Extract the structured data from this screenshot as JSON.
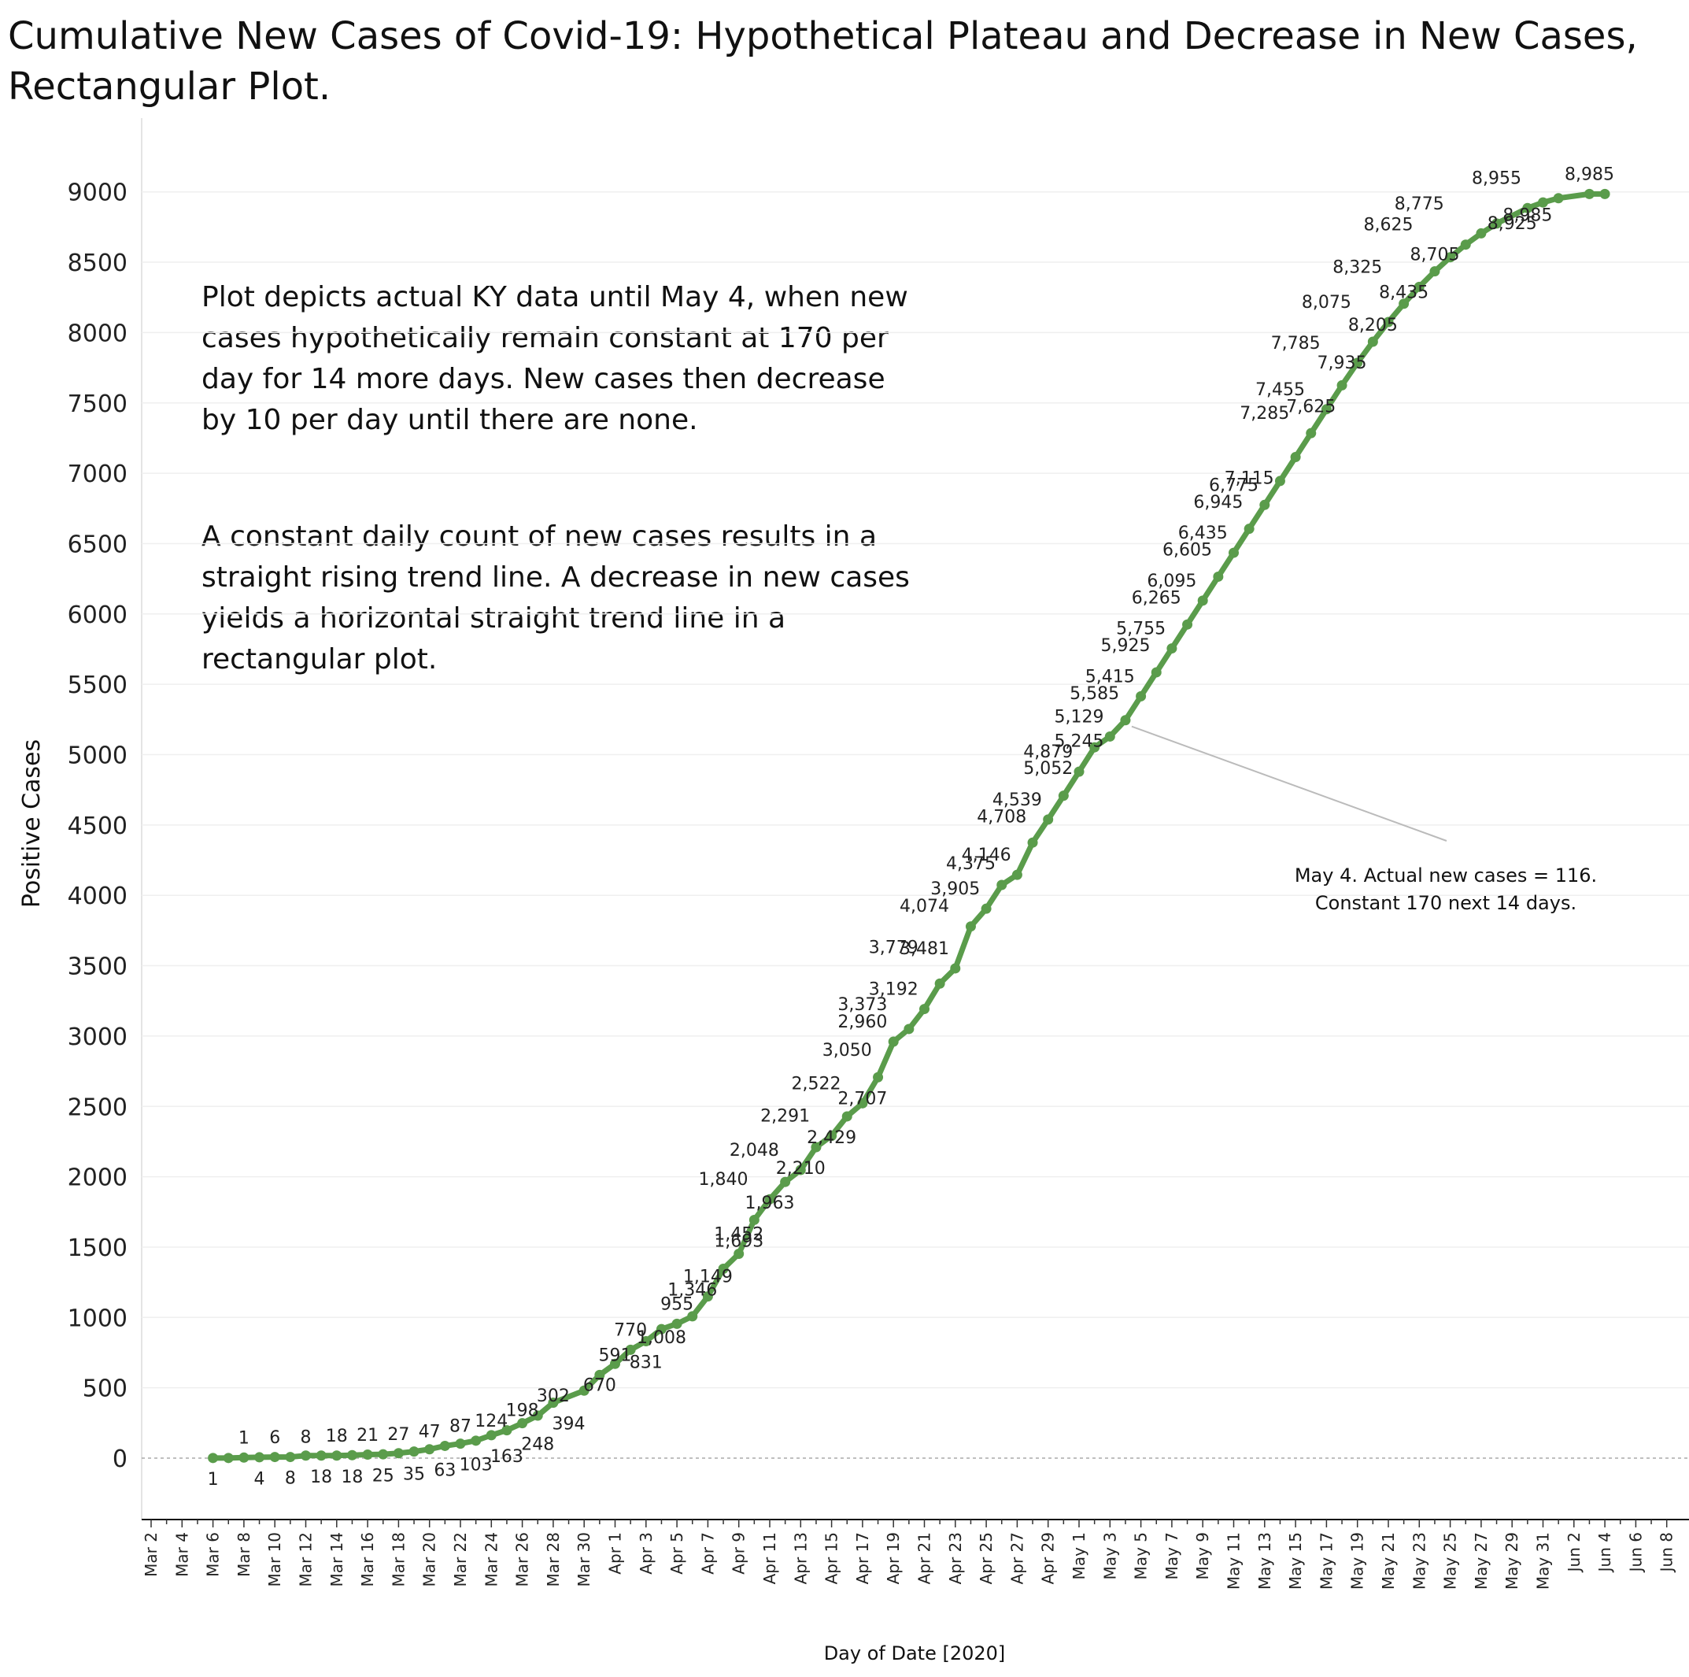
{
  "title_line1": "Cumulative New Cases of Covid-19: Hypothetical Plateau and Decrease in New Cases,",
  "title_line2": "Rectangular Plot.",
  "note_para1": "Plot depicts actual KY data until May 4, when new cases hypothetically remain constant at 170 per day for 14 more days.  New cases then decrease by 10 per day until there are none.",
  "note_para2": "A constant daily count of new cases results in a straight rising trend line. A decrease in new cases yields a horizontal  straight trend line in a rectangular plot.",
  "annotation_line1": "May 4. Actual new cases = 116.",
  "annotation_line2": "Constant 170 next 14 days.",
  "chart_data": {
    "type": "line",
    "xlabel": "Day of Date [2020]",
    "ylabel": "Positive Cases",
    "ylim": [
      -500,
      9500
    ],
    "yticks": [
      0,
      500,
      1000,
      1500,
      2000,
      2500,
      3000,
      3500,
      4000,
      4500,
      5000,
      5500,
      6000,
      6500,
      7000,
      7500,
      8000,
      8500,
      9000
    ],
    "x_start": "Mar 2",
    "x_end": "Jun 8",
    "xtick_labels": [
      "Mar 2",
      "Mar 4",
      "Mar 6",
      "Mar 8",
      "Mar 10",
      "Mar 12",
      "Mar 14",
      "Mar 16",
      "Mar 18",
      "Mar 20",
      "Mar 22",
      "Mar 24",
      "Mar 26",
      "Mar 28",
      "Mar 30",
      "Apr 1",
      "Apr 3",
      "Apr 5",
      "Apr 7",
      "Apr 9",
      "Apr 11",
      "Apr 13",
      "Apr 15",
      "Apr 17",
      "Apr 19",
      "Apr 21",
      "Apr 23",
      "Apr 25",
      "Apr 27",
      "Apr 29",
      "May 1",
      "May 3",
      "May 5",
      "May 7",
      "May 9",
      "May 11",
      "May 13",
      "May 15",
      "May 17",
      "May 19",
      "May 21",
      "May 23",
      "May 25",
      "May 27",
      "May 29",
      "May 31",
      "Jun 2",
      "Jun 4",
      "Jun 6",
      "Jun 8"
    ],
    "grid": "horizontal",
    "line_color": "#5a9c4b",
    "series": [
      {
        "points": [
          [
            "Mar 6",
            1
          ],
          [
            "Mar 7",
            1
          ],
          [
            "Mar 8",
            4
          ],
          [
            "Mar 9",
            6
          ],
          [
            "Mar 10",
            8
          ],
          [
            "Mar 11",
            8
          ],
          [
            "Mar 12",
            18
          ],
          [
            "Mar 13",
            18
          ],
          [
            "Mar 14",
            18
          ],
          [
            "Mar 15",
            21
          ],
          [
            "Mar 16",
            25
          ],
          [
            "Mar 17",
            27
          ],
          [
            "Mar 18",
            35
          ],
          [
            "Mar 19",
            47
          ],
          [
            "Mar 20",
            63
          ],
          [
            "Mar 21",
            87
          ],
          [
            "Mar 22",
            103
          ],
          [
            "Mar 23",
            124
          ],
          [
            "Mar 24",
            163
          ],
          [
            "Mar 25",
            198
          ],
          [
            "Mar 26",
            248
          ],
          [
            "Mar 27",
            302
          ],
          [
            "Mar 28",
            394
          ],
          [
            "Mar 30",
            480
          ],
          [
            "Mar 31",
            591
          ],
          [
            "Apr 1",
            670
          ],
          [
            "Apr 2",
            770
          ],
          [
            "Apr 3",
            831
          ],
          [
            "Apr 4",
            917
          ],
          [
            "Apr 5",
            955
          ],
          [
            "Apr 6",
            1008
          ],
          [
            "Apr 7",
            1149
          ],
          [
            "Apr 8",
            1346
          ],
          [
            "Apr 9",
            1452
          ],
          [
            "Apr 10",
            1693
          ],
          [
            "Apr 11",
            1840
          ],
          [
            "Apr 12",
            1963
          ],
          [
            "Apr 13",
            2048
          ],
          [
            "Apr 14",
            2210
          ],
          [
            "Apr 15",
            2291
          ],
          [
            "Apr 16",
            2429
          ],
          [
            "Apr 17",
            2522
          ],
          [
            "Apr 18",
            2707
          ],
          [
            "Apr 19",
            2960
          ],
          [
            "Apr 20",
            3050
          ],
          [
            "Apr 21",
            3192
          ],
          [
            "Apr 22",
            3373
          ],
          [
            "Apr 23",
            3481
          ],
          [
            "Apr 24",
            3779
          ],
          [
            "Apr 25",
            3905
          ],
          [
            "Apr 26",
            4074
          ],
          [
            "Apr 27",
            4146
          ],
          [
            "Apr 28",
            4375
          ],
          [
            "Apr 29",
            4539
          ],
          [
            "Apr 30",
            4708
          ],
          [
            "May 1",
            4879
          ],
          [
            "May 2",
            5052
          ],
          [
            "May 3",
            5129
          ],
          [
            "May 4",
            5245
          ],
          [
            "May 5",
            5415
          ],
          [
            "May 6",
            5585
          ],
          [
            "May 7",
            5755
          ],
          [
            "May 8",
            5925
          ],
          [
            "May 9",
            6095
          ],
          [
            "May 10",
            6265
          ],
          [
            "May 11",
            6435
          ],
          [
            "May 12",
            6605
          ],
          [
            "May 13",
            6775
          ],
          [
            "May 14",
            6945
          ],
          [
            "May 15",
            7115
          ],
          [
            "May 16",
            7285
          ],
          [
            "May 17",
            7455
          ],
          [
            "May 18",
            7625
          ],
          [
            "May 19",
            7785
          ],
          [
            "May 20",
            7935
          ],
          [
            "May 21",
            8075
          ],
          [
            "May 22",
            8205
          ],
          [
            "May 23",
            8325
          ],
          [
            "May 24",
            8435
          ],
          [
            "May 25",
            8535
          ],
          [
            "May 26",
            8625
          ],
          [
            "May 27",
            8705
          ],
          [
            "May 28",
            8775
          ],
          [
            "May 30",
            8885
          ],
          [
            "May 31",
            8925
          ],
          [
            "Jun 1",
            8955
          ],
          [
            "Jun 3",
            8985
          ],
          [
            "Jun 4",
            8985
          ]
        ],
        "labels": [
          [
            "Mar 6",
            1,
            "1"
          ],
          [
            "Mar 8",
            4,
            "1"
          ],
          [
            "Mar 9",
            4,
            "4"
          ],
          [
            "Mar 10",
            6,
            "6"
          ],
          [
            "Mar 11",
            8,
            "8"
          ],
          [
            "Mar 12",
            8,
            "8"
          ],
          [
            "Mar 13",
            18,
            "18"
          ],
          [
            "Mar 14",
            18,
            "18"
          ],
          [
            "Mar 15",
            18,
            "18"
          ],
          [
            "Mar 16",
            21,
            "21"
          ],
          [
            "Mar 17",
            25,
            "25"
          ],
          [
            "Mar 18",
            27,
            "27"
          ],
          [
            "Mar 19",
            35,
            "35"
          ],
          [
            "Mar 20",
            47,
            "47"
          ],
          [
            "Mar 21",
            63,
            "63"
          ],
          [
            "Mar 22",
            87,
            "87"
          ],
          [
            "Mar 23",
            103,
            "103"
          ],
          [
            "Mar 24",
            124,
            "124"
          ],
          [
            "Mar 25",
            163,
            "163"
          ],
          [
            "Mar 26",
            198,
            "198"
          ],
          [
            "Mar 27",
            248,
            "248"
          ],
          [
            "Mar 28",
            302,
            "302"
          ],
          [
            "Mar 29",
            394,
            "394"
          ],
          [
            "Apr 1",
            591,
            "591"
          ],
          [
            "Mar 31",
            670,
            "670"
          ],
          [
            "Apr 2",
            770,
            "770"
          ],
          [
            "Apr 3",
            831,
            "831"
          ],
          [
            "Apr 5",
            955,
            "955"
          ],
          [
            "Apr 4",
            1008,
            "1,008"
          ],
          [
            "Apr 7",
            1149,
            "1,149"
          ],
          [
            "Apr 6",
            1346,
            "1,346"
          ],
          [
            "Apr 9",
            1452,
            "1,452"
          ],
          [
            "Apr 9",
            1693,
            "1,693"
          ],
          [
            "Apr 8",
            1840,
            "1,840"
          ],
          [
            "Apr 11",
            1963,
            "1,963"
          ],
          [
            "Apr 10",
            2048,
            "2,048"
          ],
          [
            "Apr 13",
            2210,
            "2,210"
          ],
          [
            "Apr 12",
            2291,
            "2,291"
          ],
          [
            "Apr 15",
            2429,
            "2,429"
          ],
          [
            "Apr 14",
            2522,
            "2,522"
          ],
          [
            "Apr 17",
            2707,
            "2,707"
          ],
          [
            "Apr 17",
            2960,
            "2,960"
          ],
          [
            "Apr 16",
            3050,
            "3,050"
          ],
          [
            "Apr 19",
            3192,
            "3,192"
          ],
          [
            "Apr 17",
            3373,
            "3,373"
          ],
          [
            "Apr 21",
            3481,
            "3,481"
          ],
          [
            "Apr 19",
            3779,
            "3,779"
          ],
          [
            "Apr 23",
            3905,
            "3,905"
          ],
          [
            "Apr 21",
            4074,
            "4,074"
          ],
          [
            "Apr 25",
            4146,
            "4,146"
          ],
          [
            "Apr 24",
            4375,
            "4,375"
          ],
          [
            "Apr 27",
            4539,
            "4,539"
          ],
          [
            "Apr 26",
            4708,
            "4,708"
          ],
          [
            "Apr 29",
            4879,
            "4,879"
          ],
          [
            "Apr 29",
            5052,
            "5,052"
          ],
          [
            "May 1",
            5129,
            "5,129"
          ],
          [
            "May 1",
            5245,
            "5,245"
          ],
          [
            "May 3",
            5415,
            "5,415"
          ],
          [
            "May 2",
            5585,
            "5,585"
          ],
          [
            "May 5",
            5755,
            "5,755"
          ],
          [
            "May 4",
            5925,
            "5,925"
          ],
          [
            "May 7",
            6095,
            "6,095"
          ],
          [
            "May 6",
            6265,
            "6,265"
          ],
          [
            "May 9",
            6435,
            "6,435"
          ],
          [
            "May 8",
            6605,
            "6,605"
          ],
          [
            "May 11",
            6775,
            "6,775"
          ],
          [
            "May 10",
            6945,
            "6,945"
          ],
          [
            "May 13",
            7285,
            "7,285"
          ],
          [
            "May 12",
            7115,
            "7,115"
          ],
          [
            "May 14",
            7455,
            "7,455"
          ],
          [
            "May 16",
            7625,
            "7,625"
          ],
          [
            "May 15",
            7785,
            "7,785"
          ],
          [
            "May 18",
            7935,
            "7,935"
          ],
          [
            "May 17",
            8075,
            "8,075"
          ],
          [
            "May 20",
            8205,
            "8,205"
          ],
          [
            "May 19",
            8325,
            "8,325"
          ],
          [
            "May 22",
            8435,
            "8,435"
          ],
          [
            "May 21",
            8625,
            "8,625"
          ],
          [
            "May 24",
            8705,
            "8,705"
          ],
          [
            "May 23",
            8775,
            "8,775"
          ],
          [
            "May 29",
            8925,
            "8,925"
          ],
          [
            "May 28",
            8955,
            "8,955"
          ],
          [
            "May 30",
            8985,
            "8,985"
          ],
          [
            "Jun 3",
            8985,
            "8,985"
          ]
        ]
      }
    ]
  }
}
